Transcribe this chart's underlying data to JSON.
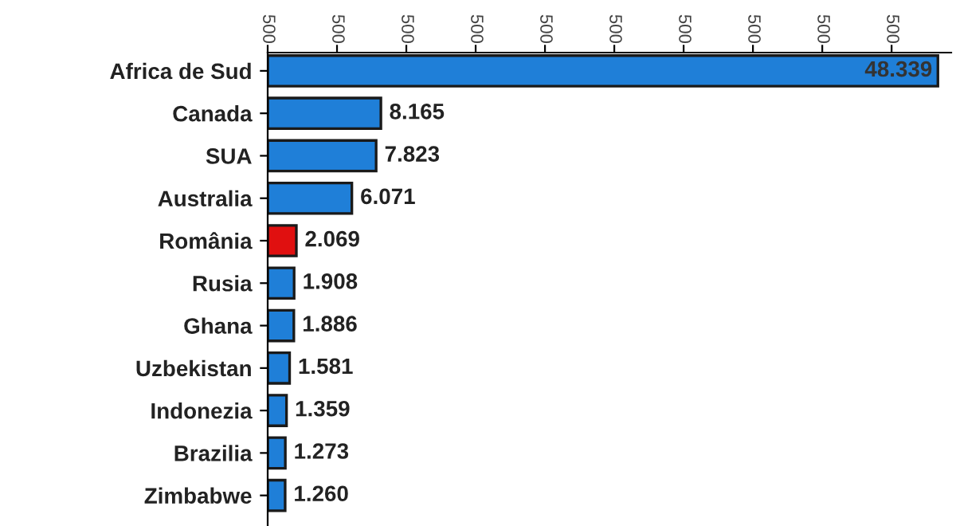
{
  "chart_data": {
    "type": "bar",
    "orientation": "horizontal",
    "categories": [
      "Africa de Sud",
      "Canada",
      "SUA",
      "Australia",
      "România",
      "Rusia",
      "Ghana",
      "Uzbekistan",
      "Indonezia",
      "Brazilia",
      "Zimbabwe"
    ],
    "values": [
      48.339,
      8.165,
      7.823,
      6.071,
      2.069,
      1.908,
      1.886,
      1.581,
      1.359,
      1.273,
      1.26
    ],
    "value_labels": [
      "48.339",
      "8.165",
      "7.823",
      "6.071",
      "2.069",
      "1.908",
      "1.886",
      "1.581",
      "1.359",
      "1.273",
      "1.260"
    ],
    "colors": [
      "#1f7fd8",
      "#1f7fd8",
      "#1f7fd8",
      "#1f7fd8",
      "#e01010",
      "#1f7fd8",
      "#1f7fd8",
      "#1f7fd8",
      "#1f7fd8",
      "#1f7fd8",
      "#1f7fd8"
    ],
    "xlim": [
      0,
      49.3
    ],
    "xticks": [
      {
        "value": 0,
        "label": null
      },
      {
        "value": 5,
        "label": null
      },
      {
        "value": 10,
        "label": null
      },
      {
        "value": 15,
        "label": null
      },
      {
        "value": 20,
        "label": null
      },
      {
        "value": 25,
        "label": null
      },
      {
        "value": 30,
        "label": null
      },
      {
        "value": 35,
        "label": null
      },
      {
        "value": 40,
        "label": null
      },
      {
        "value": 45,
        "label": null
      }
    ],
    "annotations": [
      "500",
      "500",
      "500",
      "500",
      "500",
      "500",
      "500",
      "500",
      "500",
      "500"
    ],
    "data_labels": false,
    "grid": false,
    "legend": false
  }
}
